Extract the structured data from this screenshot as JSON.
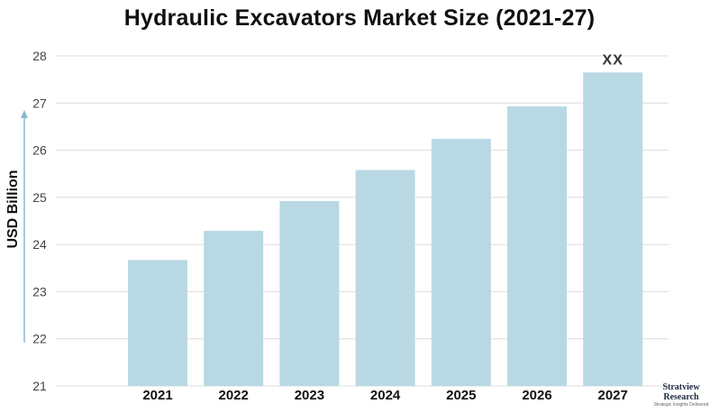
{
  "chart_data": {
    "type": "bar",
    "title": "Hydraulic Excavators Market Size (2021-27)",
    "ylabel": "USD Billion",
    "xlabel": "",
    "categories": [
      "2021",
      "2022",
      "2023",
      "2024",
      "2025",
      "2026",
      "2027"
    ],
    "values": [
      23.67,
      24.29,
      24.92,
      25.58,
      26.24,
      26.93,
      27.65
    ],
    "ylim": [
      21,
      28
    ],
    "yticks": [
      21,
      22,
      23,
      24,
      25,
      26,
      27,
      28
    ],
    "grid": true,
    "legend": "none",
    "annotations": [
      {
        "category": "2027",
        "text": "XX"
      }
    ],
    "bar_color": "#b8d9e4",
    "grid_color": "#dcdcdc",
    "arrow_color": "#86bccd"
  },
  "logo": {
    "line1": "Stratview",
    "line2": "Research",
    "tagline": "Strategic Insights Delivered"
  }
}
